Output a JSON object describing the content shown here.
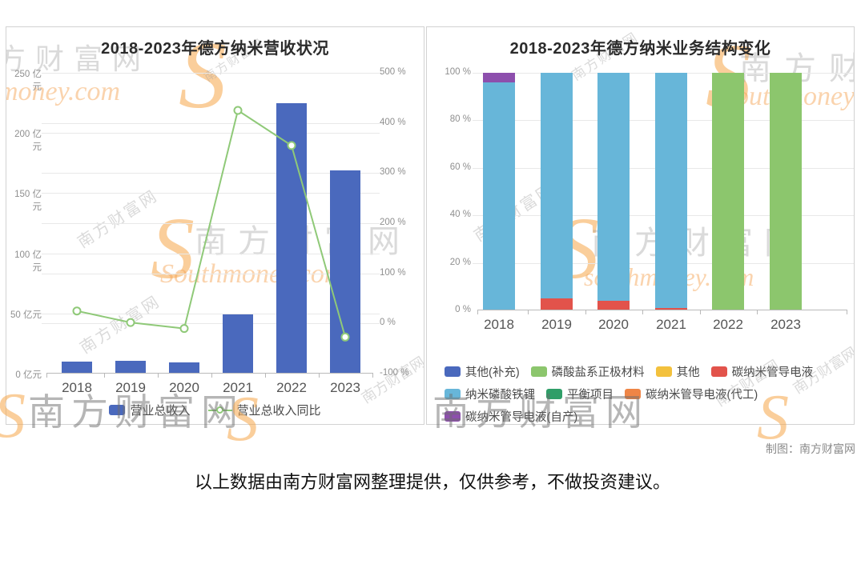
{
  "page": {
    "caption": "以上数据由南方财富网整理提供，仅供参考，不做投资建议。",
    "credit": "制图：南方财富网"
  },
  "watermarks": {
    "brand_cn": "南方财富网",
    "brand_cn_cut": "方财富网",
    "brand_en_cap": "Southmoney.com",
    "brand_en": "southmoney.com",
    "brand_en_cut": "money.com",
    "brand_en_cut2": "outhmoney.com",
    "logo_s": "S"
  },
  "colors": {
    "grid": "#e8e8e8",
    "axis": "#b9b9b9",
    "bar_blue": "#4a69bd",
    "line_green": "#8fc978",
    "series": {
      "营业总收入": "#4a69bd",
      "营业总收入同比": "#8fc978",
      "其他(补充)": "#4a69bd",
      "磷酸盐系正极材料": "#8cc66d",
      "其他": "#f3c13d",
      "碳纳米管导电液": "#e2534b",
      "纳米磷酸铁锂": "#67b6d9",
      "平衡项目": "#2f9e68",
      "碳纳米管导电液(代工)": "#ef8546",
      "碳纳米管导电液(自产)": "#8d4fad"
    }
  },
  "chart_data": [
    {
      "type": "bar",
      "title": "2018-2023年德方纳米营收状况",
      "categories": [
        "2018",
        "2019",
        "2020",
        "2021",
        "2022",
        "2023"
      ],
      "series": [
        {
          "name": "营业总收入",
          "type": "bar",
          "axis": "left",
          "unit": "亿元",
          "values": [
            10,
            10.5,
            9.5,
            49,
            225,
            169
          ]
        },
        {
          "name": "营业总收入同比",
          "type": "line",
          "axis": "right",
          "unit": "%",
          "values": [
            25,
            2,
            -10,
            425,
            355,
            -27
          ]
        }
      ],
      "left_axis": {
        "unit": "亿元",
        "min": 0,
        "max": 250,
        "ticks": [
          "250 亿元",
          "200 亿元",
          "150 亿元",
          "100 亿元",
          "50 亿元",
          "0 亿元"
        ]
      },
      "right_axis": {
        "unit": "%",
        "min": -100,
        "max": 500,
        "ticks": [
          "500 %",
          "400 %",
          "300 %",
          "200 %",
          "100 %",
          "0 %",
          "-100 %"
        ]
      },
      "grid": true,
      "legend_position": "bottom-center",
      "legend": [
        {
          "label": "营业总收入",
          "marker": "bar"
        },
        {
          "label": "营业总收入同比",
          "marker": "line"
        }
      ]
    },
    {
      "type": "bar",
      "subtype": "stacked-percent",
      "title": "2018-2023年德方纳米业务结构变化",
      "categories": [
        "2018",
        "2019",
        "2020",
        "2021",
        "2022",
        "2023"
      ],
      "y_axis": {
        "unit": "%",
        "min": 0,
        "max": 100,
        "ticks": [
          "100 %",
          "80 %",
          "60 %",
          "40 %",
          "20 %",
          "0 %"
        ]
      },
      "grid": true,
      "stacks": [
        [
          {
            "name": "纳米磷酸铁锂",
            "value": 96
          },
          {
            "name": "碳纳米管导电液(自产)",
            "value": 4
          }
        ],
        [
          {
            "name": "碳纳米管导电液",
            "value": 5
          },
          {
            "name": "纳米磷酸铁锂",
            "value": 95
          }
        ],
        [
          {
            "name": "碳纳米管导电液",
            "value": 4
          },
          {
            "name": "纳米磷酸铁锂",
            "value": 96
          }
        ],
        [
          {
            "name": "碳纳米管导电液",
            "value": 1
          },
          {
            "name": "纳米磷酸铁锂",
            "value": 99
          }
        ],
        [
          {
            "name": "磷酸盐系正极材料",
            "value": 100
          }
        ],
        [
          {
            "name": "磷酸盐系正极材料",
            "value": 100
          }
        ]
      ],
      "legend_position": "bottom-left",
      "legend_rows": [
        [
          "其他(补充)",
          "磷酸盐系正极材料",
          "其他",
          "碳纳米管导电液"
        ],
        [
          "纳米磷酸铁锂",
          "平衡项目",
          "碳纳米管导电液(代工)"
        ],
        [
          "碳纳米管导电液(自产)"
        ]
      ]
    }
  ]
}
